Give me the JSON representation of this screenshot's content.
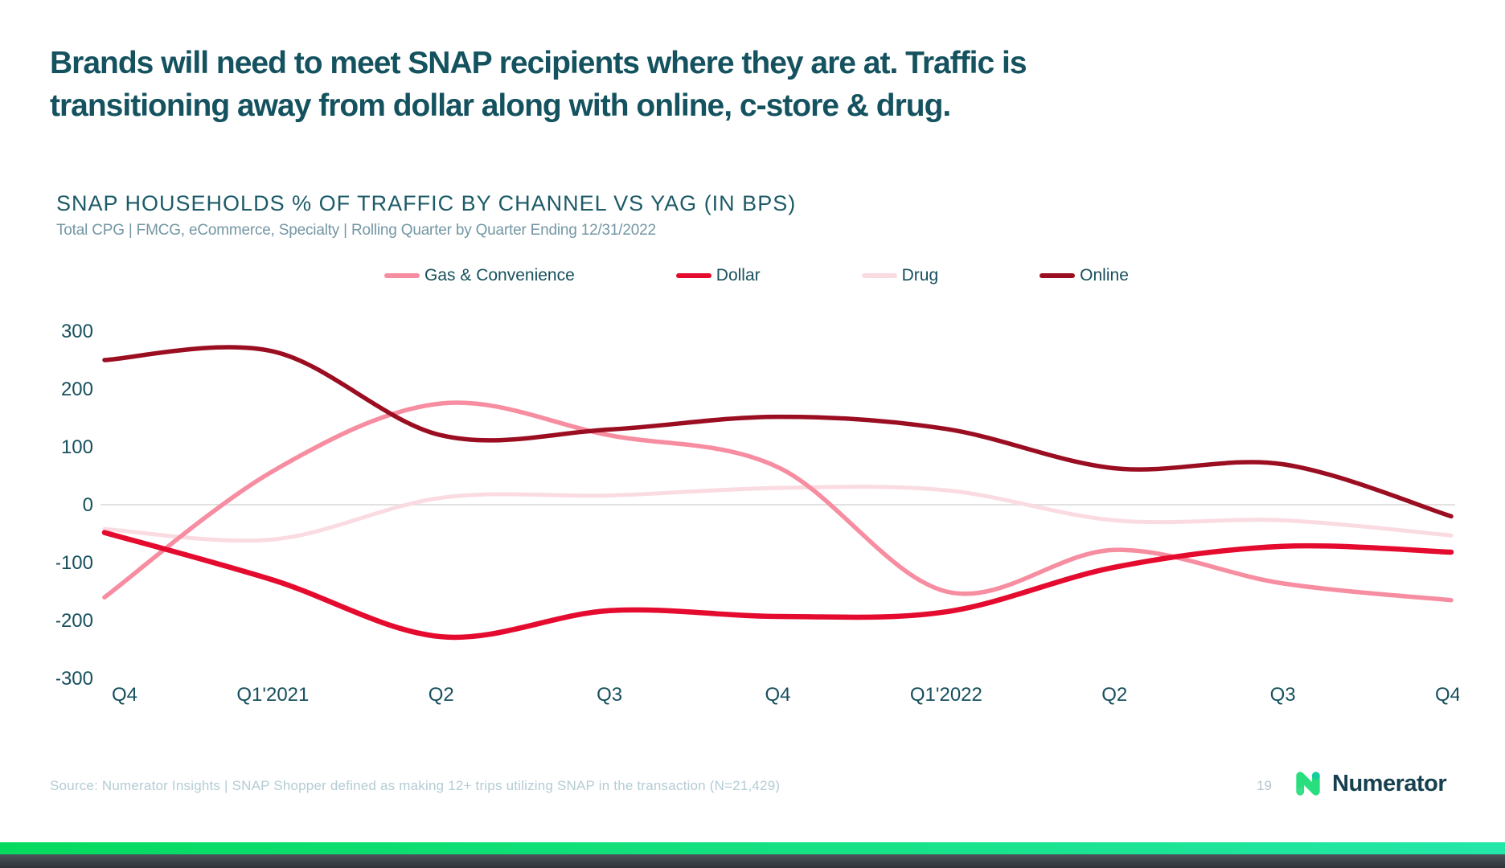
{
  "slide": {
    "title_line1": "Brands will need to meet SNAP recipients where they are at. Traffic is",
    "title_line2": "transitioning away from dollar along with online, c-store & drug.",
    "source": "Source: Numerator Insights | SNAP Shopper defined as making 12+ trips utilizing SNAP in the transaction (N=21,429)",
    "page_number": "19",
    "brand_name": "Numerator"
  },
  "chart_data": {
    "type": "line",
    "title": "SNAP HOUSEHOLDS % OF TRAFFIC BY CHANNEL VS YAG (IN BPS)",
    "subtitle": "Total CPG | FMCG, eCommerce, Specialty | Rolling Quarter by Quarter Ending 12/31/2022",
    "unit": "bps",
    "categories": [
      "Q4",
      "Q1'2021",
      "Q2",
      "Q3",
      "Q4",
      "Q1'2022",
      "Q2",
      "Q3",
      "Q4"
    ],
    "series": [
      {
        "name": "Gas & Convenience",
        "color": "#F78DA0",
        "width": 5.5,
        "z": 1,
        "values": [
          -160,
          58,
          175,
          120,
          65,
          -150,
          -78,
          -136,
          -165
        ]
      },
      {
        "name": "Dollar",
        "color": "#E40B2F",
        "width": 6.5,
        "z": 2,
        "values": [
          -48,
          -130,
          -228,
          -183,
          -193,
          -185,
          -108,
          -72,
          -82
        ]
      },
      {
        "name": "Drug",
        "color": "#FADBE2",
        "width": 5,
        "z": 0,
        "values": [
          -42,
          -60,
          12,
          16,
          29,
          25,
          -27,
          -27,
          -53
        ]
      },
      {
        "name": "Online",
        "color": "#9B0E22",
        "width": 5.5,
        "z": 3,
        "values": [
          250,
          265,
          120,
          130,
          152,
          131,
          63,
          70,
          -20
        ]
      }
    ],
    "y_ticks": [
      300,
      200,
      100,
      0,
      -100,
      -200,
      -300
    ],
    "ylim": [
      -300,
      300
    ],
    "grid": "zero-line-only",
    "legend_position": "top",
    "axis_label_color": "#17505d",
    "zero_line_color": "#e2e2e2"
  },
  "footer_colors": {
    "green_bar_start": "#05da5e",
    "green_bar_end": "#23e7a9",
    "dark_bar": "#3a4149",
    "logo_green": "#29DF7D",
    "logo_teal_dot": "#16CDA0",
    "logo_light_dot": "#36E087"
  }
}
